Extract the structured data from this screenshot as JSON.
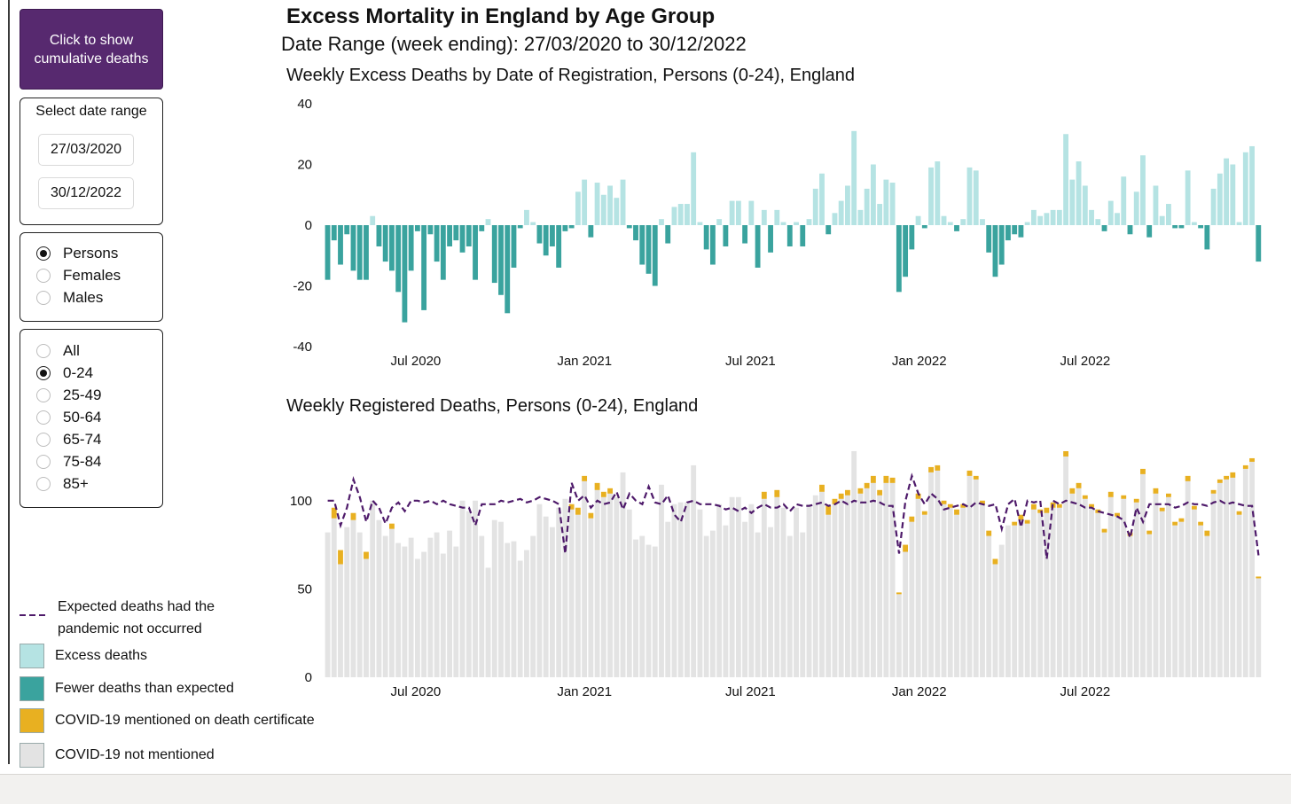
{
  "sidebar": {
    "cumulative_button": "Click to show cumulative deaths",
    "date_panel_title": "Select date range",
    "start_date": "27/03/2020",
    "end_date": "30/12/2022",
    "sex_options": [
      {
        "label": "Persons",
        "selected": true
      },
      {
        "label": "Females",
        "selected": false
      },
      {
        "label": "Males",
        "selected": false
      }
    ],
    "age_options": [
      {
        "label": "All",
        "selected": false
      },
      {
        "label": "0-24",
        "selected": true
      },
      {
        "label": "25-49",
        "selected": false
      },
      {
        "label": "50-64",
        "selected": false
      },
      {
        "label": "65-74",
        "selected": false
      },
      {
        "label": "75-84",
        "selected": false
      },
      {
        "label": "85+",
        "selected": false
      }
    ]
  },
  "header": {
    "title": "Excess Mortality in England by Age Group",
    "date_range": "Date Range (week ending): 27/03/2020 to 30/12/2022"
  },
  "legend": {
    "expected_line_1": "Expected deaths had the",
    "expected_line_2": "pandemic not occurred",
    "excess": "Excess deaths",
    "fewer": "Fewer deaths than expected",
    "covid": "COVID-19 mentioned on death certificate",
    "non_covid": "COVID-19 not mentioned"
  },
  "colors": {
    "excess": "#b5e3e3",
    "fewer": "#3aa39e",
    "covid": "#e8b021",
    "non_covid": "#e3e3e3",
    "expected_line": "#4e1a6a",
    "button_bg": "#57296f"
  },
  "chart_data": [
    {
      "type": "bar",
      "title": "Weekly Excess Deaths by Date of Registration, Persons (0-24), England",
      "x_start": "2020-03-27",
      "x_step_days": 7,
      "ylim": [
        -40,
        40
      ],
      "yticks": [
        "40",
        "20",
        "0",
        "-20",
        "-40"
      ],
      "ytick_values": [
        40,
        20,
        0,
        -20,
        -40
      ],
      "xticks": [
        "Jul 2020",
        "Jan 2021",
        "Jul 2021",
        "Jan 2022",
        "Jul 2022"
      ],
      "xtick_dates": [
        "2020-07-01",
        "2021-01-01",
        "2021-07-01",
        "2022-01-01",
        "2022-07-01"
      ],
      "values": [
        -18,
        -5,
        -13,
        -3,
        -15,
        -18,
        -18,
        3,
        -7,
        -12,
        -15,
        -22,
        -32,
        -15,
        -2,
        -28,
        -3,
        -12,
        -18,
        -7,
        -5,
        -9,
        -7,
        -18,
        -2,
        2,
        -19,
        -23,
        -29,
        -14,
        -1,
        5,
        1,
        -6,
        -10,
        -7,
        -14,
        -2,
        -1,
        11,
        15,
        -4,
        14,
        10,
        13,
        9,
        15,
        -1,
        -5,
        -13,
        -16,
        -20,
        2,
        -6,
        6,
        7,
        7,
        24,
        1,
        -8,
        -13,
        2,
        -7,
        8,
        8,
        -6,
        8,
        -14,
        5,
        -9,
        5,
        1,
        -7,
        1,
        -7,
        2,
        12,
        17,
        -3,
        4,
        8,
        13,
        31,
        5,
        12,
        20,
        7,
        15,
        14,
        -22,
        -17,
        -8,
        3,
        -1,
        19,
        21,
        3,
        1,
        -2,
        2,
        19,
        18,
        2,
        -9,
        -17,
        -13,
        -5,
        -3,
        -4,
        1,
        5,
        3,
        4,
        5,
        5,
        30,
        15,
        21,
        13,
        5,
        2,
        -2,
        8,
        4,
        16,
        -3,
        11,
        23,
        -4,
        13,
        3,
        7,
        -1,
        -1,
        18,
        1,
        -1,
        -8,
        12,
        17,
        22,
        20,
        1,
        24,
        26,
        -12
      ]
    },
    {
      "type": "bar",
      "title": "Weekly Registered Deaths, Persons (0-24), England",
      "x_start": "2020-03-27",
      "x_step_days": 7,
      "ylim": [
        0,
        130
      ],
      "yticks": [
        "100",
        "50",
        "0"
      ],
      "ytick_values": [
        100,
        50,
        0
      ],
      "xticks": [
        "Jul 2020",
        "Jan 2021",
        "Jul 2021",
        "Jan 2022",
        "Jul 2022"
      ],
      "xtick_dates": [
        "2020-07-01",
        "2021-01-01",
        "2021-07-01",
        "2022-01-01",
        "2022-07-01"
      ],
      "series": [
        {
          "name": "COVID-19 not mentioned",
          "values": [
            82,
            90,
            64,
            85,
            89,
            82,
            67,
            100,
            89,
            80,
            84,
            76,
            74,
            79,
            67,
            71,
            79,
            82,
            70,
            83,
            74,
            100,
            94,
            100,
            80,
            62,
            89,
            88,
            76,
            77,
            66,
            72,
            80,
            98,
            91,
            85,
            96,
            101,
            95,
            92,
            111,
            90,
            106,
            102,
            104,
            102,
            116,
            95,
            78,
            80,
            75,
            74,
            109,
            88,
            98,
            99,
            99,
            120,
            95,
            80,
            83,
            98,
            86,
            102,
            102,
            88,
            98,
            82,
            101,
            85,
            102,
            96,
            80,
            96,
            82,
            98,
            103,
            105,
            92,
            98,
            101,
            103,
            128,
            104,
            107,
            110,
            103,
            110,
            110,
            47,
            71,
            88,
            101,
            92,
            116,
            117,
            98,
            96,
            92,
            96,
            114,
            112,
            98,
            80,
            64,
            75,
            86,
            86,
            89,
            87,
            95,
            93,
            93,
            96,
            96,
            125,
            104,
            107,
            101,
            96,
            93,
            82,
            102,
            91,
            101,
            80,
            99,
            115,
            81,
            104,
            94,
            102,
            86,
            88,
            111,
            95,
            86,
            80,
            104,
            110,
            112,
            113,
            92,
            118,
            122,
            56
          ]
        },
        {
          "name": "COVID-19 mentioned on death certificate",
          "values": [
            0,
            6,
            8,
            0,
            4,
            0,
            4,
            0,
            0,
            0,
            3,
            0,
            0,
            0,
            0,
            0,
            0,
            0,
            0,
            0,
            0,
            0,
            0,
            0,
            0,
            0,
            0,
            0,
            0,
            0,
            0,
            0,
            0,
            0,
            0,
            0,
            0,
            0,
            3,
            4,
            3,
            3,
            4,
            3,
            3,
            0,
            0,
            0,
            0,
            0,
            0,
            0,
            0,
            0,
            0,
            0,
            0,
            0,
            0,
            0,
            0,
            0,
            0,
            0,
            0,
            0,
            0,
            0,
            4,
            0,
            4,
            0,
            0,
            0,
            0,
            0,
            0,
            4,
            5,
            3,
            3,
            3,
            0,
            3,
            3,
            4,
            3,
            4,
            3,
            1,
            4,
            3,
            3,
            2,
            3,
            3,
            2,
            2,
            3,
            2,
            3,
            2,
            2,
            3,
            3,
            0,
            0,
            2,
            3,
            2,
            3,
            2,
            3,
            3,
            2,
            3,
            3,
            3,
            2,
            2,
            2,
            2,
            3,
            2,
            2,
            2,
            2,
            3,
            2,
            3,
            2,
            2,
            2,
            2,
            3,
            2,
            2,
            3,
            2,
            2,
            2,
            3,
            2,
            2,
            2,
            1
          ]
        },
        {
          "name": "Expected deaths had the pandemic not occurred",
          "values": [
            100,
            100,
            86,
            96,
            112,
            102,
            88,
            100,
            96,
            87,
            96,
            99,
            94,
            100,
            100,
            99,
            100,
            98,
            100,
            98,
            97,
            96,
            96,
            86,
            98,
            98,
            98,
            100,
            99,
            100,
            101,
            99,
            100,
            102,
            101,
            100,
            98,
            70,
            110,
            100,
            103,
            96,
            100,
            98,
            99,
            105,
            95,
            104,
            100,
            98,
            108,
            99,
            98,
            103,
            92,
            88,
            99,
            100,
            98,
            98,
            98,
            97,
            95,
            96,
            94,
            96,
            93,
            96,
            98,
            96,
            96,
            98,
            94,
            98,
            97,
            97,
            98,
            99,
            97,
            98,
            100,
            98,
            100,
            99,
            99,
            100,
            99,
            97,
            97,
            70,
            100,
            114,
            104,
            98,
            104,
            101,
            95,
            96,
            97,
            98,
            96,
            99,
            98,
            97,
            98,
            84,
            98,
            101,
            85,
            100,
            99,
            100,
            67,
            100,
            98,
            100,
            99,
            98,
            96,
            96,
            94,
            93,
            92,
            91,
            89,
            79,
            96,
            88,
            98,
            98,
            98,
            98,
            96,
            97,
            99,
            98,
            98,
            97,
            99,
            100,
            98,
            99,
            98,
            97,
            97,
            69
          ]
        }
      ]
    }
  ]
}
